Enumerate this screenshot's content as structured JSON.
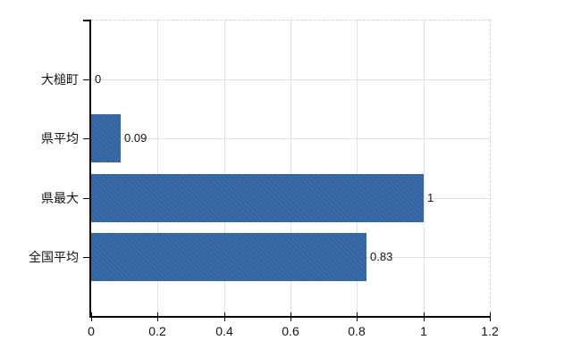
{
  "chart_data": {
    "type": "bar",
    "orientation": "horizontal",
    "title": "",
    "categories": [
      "大槌町",
      "県平均",
      "県最大",
      "全国平均"
    ],
    "values": [
      0,
      0.09,
      1,
      0.83
    ],
    "value_labels": [
      "0",
      "0.09",
      "1",
      "0.83"
    ],
    "x_ticks": [
      0,
      0.2,
      0.4,
      0.6,
      0.8,
      1,
      1.2
    ],
    "x_tick_labels": [
      "0",
      "0.2",
      "0.4",
      "0.6",
      "0.8",
      "1",
      "1.2"
    ],
    "xlim": [
      0,
      1.2
    ],
    "grid": true,
    "legend": false,
    "colors": {
      "bar": "#3a6aa8",
      "grid": "#e0e4e0",
      "plot_border": "#d7d2d6",
      "axis": "#000000",
      "text": "#141414"
    }
  }
}
